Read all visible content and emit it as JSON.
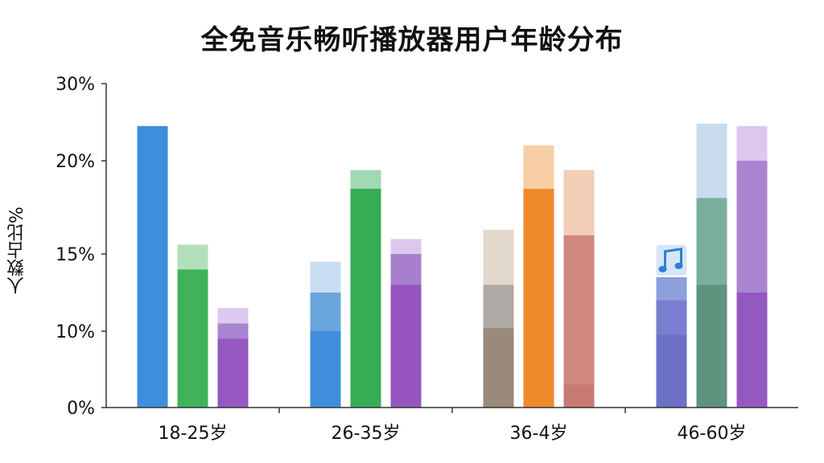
{
  "chart_data": {
    "type": "bar",
    "title": "全免音乐畅听播放器用户年龄分布",
    "xlabel": "",
    "ylabel": "人数占比%",
    "yticks": [
      "0%",
      "10%",
      "15%",
      "20%",
      "30%"
    ],
    "categories": [
      "18-25岁",
      "26-35岁",
      "36-4岁",
      "46-60岁"
    ],
    "grid": false,
    "legend": "none",
    "bars": [
      [
        {
          "segments": [
            {
              "value": 24.5,
              "color": "#3d8edb"
            }
          ]
        },
        {
          "segments": [
            {
              "value": 14.0,
              "color": "#40b35a"
            },
            {
              "value": 15.5,
              "color": "#b4dfbd"
            }
          ]
        },
        {
          "segments": [
            {
              "value": 9.0,
              "color": "#9557c0"
            },
            {
              "value": 10.5,
              "color": "#a984cf"
            },
            {
              "value": 11.5,
              "color": "#ddc9ee"
            }
          ]
        }
      ],
      [
        {
          "segments": [
            {
              "value": 10.0,
              "color": "#3f8fdc"
            },
            {
              "value": 12.5,
              "color": "#6aa6de"
            },
            {
              "value": 14.5,
              "color": "#c7ddf2"
            }
          ]
        },
        {
          "segments": [
            {
              "value": 18.5,
              "color": "#37ad56"
            },
            {
              "value": 19.5,
              "color": "#a2d8b2"
            }
          ]
        },
        {
          "segments": [
            {
              "value": 13.0,
              "color": "#9655c0"
            },
            {
              "value": 15.0,
              "color": "#a77fcc"
            },
            {
              "value": 15.8,
              "color": "#dcc8ec"
            }
          ]
        }
      ],
      [
        {
          "segments": [
            {
              "value": 10.2,
              "color": "#9a8a7a"
            },
            {
              "value": 13.0,
              "color": "#aeaaa6"
            },
            {
              "value": 16.3,
              "color": "#e3d8cc"
            }
          ]
        },
        {
          "segments": [
            {
              "value": 18.5,
              "color": "#ef8a2c"
            },
            {
              "value": 22.0,
              "color": "#f8cfa4"
            }
          ]
        },
        {
          "segments": [
            {
              "value": 3.0,
              "color": "#c97a72"
            },
            {
              "value": 16.0,
              "color": "#cf877e"
            },
            {
              "value": 19.5,
              "color": "#f3cdb6"
            }
          ]
        }
      ],
      [
        {
          "segments": [
            {
              "value": 9.5,
              "color": "#6c70c4"
            },
            {
              "value": 12.0,
              "color": "#7a7ed0"
            },
            {
              "value": 13.5,
              "color": "#8da0dc"
            }
          ]
        },
        {
          "segments": [
            {
              "value": 13.0,
              "color": "#5e937d"
            },
            {
              "value": 18.0,
              "color": "#7aae9e"
            },
            {
              "value": 24.8,
              "color": "#c8dced"
            }
          ]
        },
        {
          "segments": [
            {
              "value": 12.5,
              "color": "#9557c0"
            },
            {
              "value": 20.0,
              "color": "#a985cf"
            },
            {
              "value": 24.5,
              "color": "#dcc8ec"
            }
          ]
        }
      ]
    ],
    "annotation_icon": "music-note-icon",
    "colors": {
      "axis": "#333333",
      "text": "#111111"
    }
  }
}
